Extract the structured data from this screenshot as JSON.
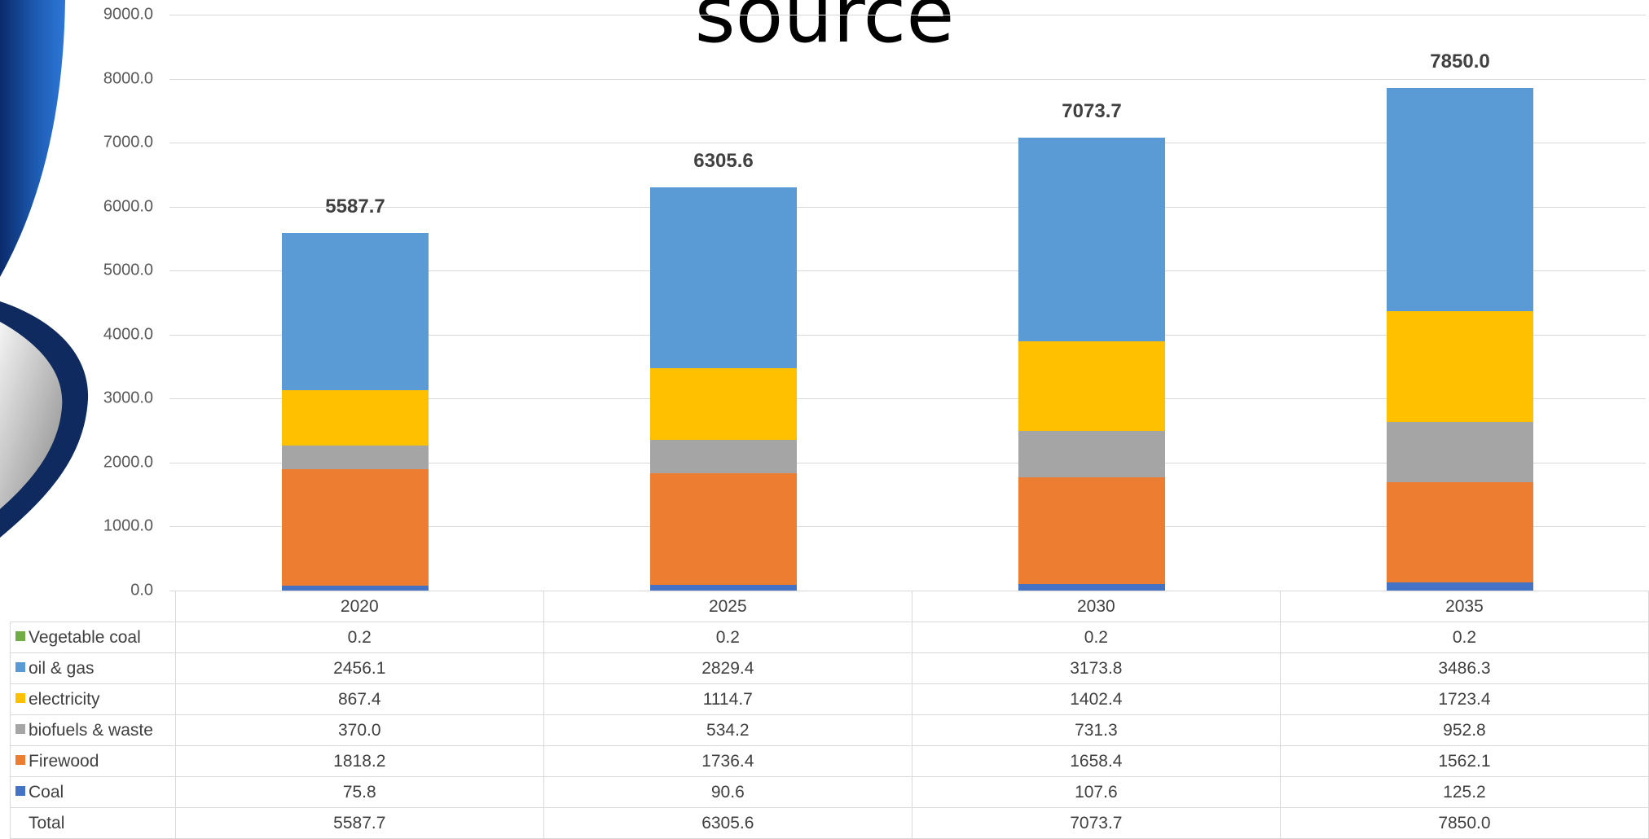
{
  "chart_data": {
    "type": "bar",
    "stacked": true,
    "title": "source",
    "categories": [
      "2020",
      "2025",
      "2030",
      "2035"
    ],
    "series": [
      {
        "name": "Coal",
        "values": [
          75.8,
          90.6,
          107.6,
          125.2
        ],
        "color": "#4472c4"
      },
      {
        "name": "Firewood",
        "values": [
          1818.2,
          1736.4,
          1658.4,
          1562.1
        ],
        "color": "#ed7d31"
      },
      {
        "name": "biofuels & waste",
        "values": [
          370.0,
          534.2,
          731.3,
          952.8
        ],
        "color": "#a5a5a5"
      },
      {
        "name": "electricity",
        "values": [
          867.4,
          1114.7,
          1402.4,
          1723.4
        ],
        "color": "#ffc000"
      },
      {
        "name": "oil & gas",
        "values": [
          2456.1,
          2829.4,
          3173.8,
          3486.3
        ],
        "color": "#5b9bd5"
      },
      {
        "name": "Vegetable coal",
        "values": [
          0.2,
          0.2,
          0.2,
          0.2
        ],
        "color": "#70ad47"
      }
    ],
    "totals": [
      5587.7,
      6305.6,
      7073.7,
      7850.0
    ],
    "total_labels": [
      "5587.7",
      "6305.6",
      "7073.7",
      "7850.0"
    ],
    "yticks": [
      "0.0",
      "1000.0",
      "2000.0",
      "3000.0",
      "4000.0",
      "5000.0",
      "6000.0",
      "7000.0",
      "8000.0",
      "9000.0"
    ],
    "ylim": [
      0,
      9000
    ],
    "grid": true,
    "data_table": {
      "rows": [
        {
          "label": "Vegetable coal",
          "color": "#70ad47",
          "cells": [
            "0.2",
            "0.2",
            "0.2",
            "0.2"
          ]
        },
        {
          "label": "oil & gas",
          "color": "#5b9bd5",
          "cells": [
            "2456.1",
            "2829.4",
            "3173.8",
            "3486.3"
          ]
        },
        {
          "label": "electricity",
          "color": "#ffc000",
          "cells": [
            "867.4",
            "1114.7",
            "1402.4",
            "1723.4"
          ]
        },
        {
          "label": "biofuels & waste",
          "color": "#a5a5a5",
          "cells": [
            "370.0",
            "534.2",
            "731.3",
            "952.8"
          ]
        },
        {
          "label": "Firewood",
          "color": "#ed7d31",
          "cells": [
            "1818.2",
            "1736.4",
            "1658.4",
            "1562.1"
          ]
        },
        {
          "label": "Coal",
          "color": "#4472c4",
          "cells": [
            "75.8",
            "90.6",
            "107.6",
            "125.2"
          ]
        },
        {
          "label": "Total",
          "color": "",
          "cells": [
            "5587.7",
            "6305.6",
            "7073.7",
            "7850.0"
          ]
        }
      ]
    }
  }
}
